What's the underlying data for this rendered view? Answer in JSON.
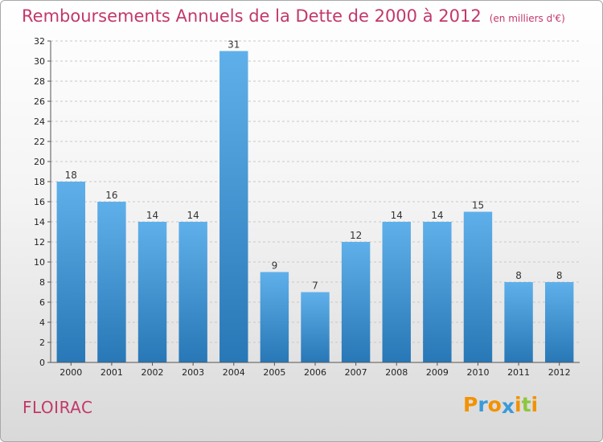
{
  "title": "Remboursements Annuels de la Dette de 2000 à 2012",
  "subtitle": "(en milliers d'€)",
  "commune": "FLOIRAC",
  "logo": {
    "letters": [
      "P",
      "r",
      "o",
      "x",
      "i",
      "t",
      "i"
    ],
    "colors": [
      "#f39200",
      "#3a9ad9",
      "#f39200",
      "#3a9ad9",
      "#f39200",
      "#8dc63f",
      "#f39200"
    ]
  },
  "colors": {
    "title": "#c2386a",
    "bar_top": "#5fb0ea",
    "bar_bottom": "#2877b6",
    "grid": "#c8c8c8"
  },
  "chart_data": {
    "type": "bar",
    "title": "Remboursements Annuels de la Dette de 2000 à 2012",
    "subtitle": "(en milliers d'€)",
    "xlabel": "",
    "ylabel": "",
    "categories": [
      "2000",
      "2001",
      "2002",
      "2003",
      "2004",
      "2005",
      "2006",
      "2007",
      "2008",
      "2009",
      "2010",
      "2011",
      "2012"
    ],
    "values": [
      18,
      16,
      14,
      14,
      31,
      9,
      7,
      12,
      14,
      14,
      15,
      8,
      8
    ],
    "ylim": [
      0,
      32
    ],
    "yticks": [
      0,
      2,
      4,
      6,
      8,
      10,
      12,
      14,
      16,
      18,
      20,
      22,
      24,
      26,
      28,
      30,
      32
    ],
    "grid": true,
    "data_labels": true
  }
}
